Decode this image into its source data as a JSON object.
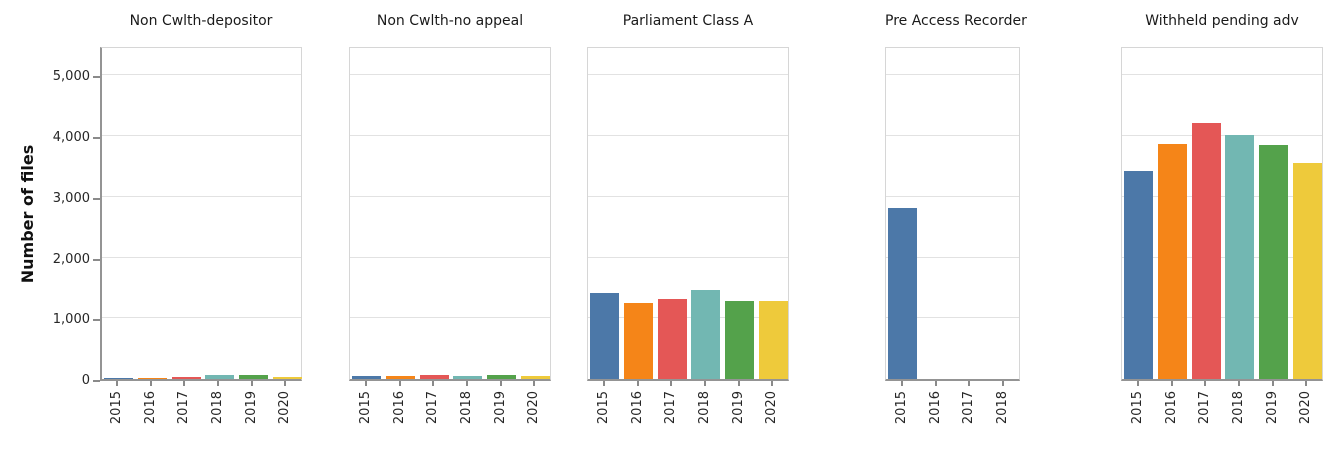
{
  "figure": {
    "background": "#ffffff",
    "text_color": "#262626",
    "grid_color": "#e2e2e2",
    "border_color": "#d6d6d6",
    "spine_color": "#949494"
  },
  "chart_data": {
    "type": "bar",
    "title": "",
    "xlabel": "",
    "ylabel": "Number of files",
    "ylim": [
      0,
      5500
    ],
    "grid": true,
    "legend": "none",
    "yticks": [
      {
        "value": 0,
        "label": "0"
      },
      {
        "value": 1000,
        "label": "1,000"
      },
      {
        "value": 2000,
        "label": "2,000"
      },
      {
        "value": 3000,
        "label": "3,000"
      },
      {
        "value": 4000,
        "label": "4,000"
      },
      {
        "value": 5000,
        "label": "5,000"
      }
    ],
    "palette": [
      "#4c78a8",
      "#f58518",
      "#e45756",
      "#72b7b2",
      "#54a24b",
      "#eeca3b"
    ],
    "facets": [
      {
        "title": "Non Cwlth-depositor",
        "categories": [
          "2015",
          "2016",
          "2017",
          "2018",
          "2019",
          "2020"
        ],
        "values": [
          15,
          20,
          25,
          65,
          65,
          40
        ]
      },
      {
        "title": "Non Cwlth-no appeal",
        "categories": [
          "2015",
          "2016",
          "2017",
          "2018",
          "2019",
          "2020"
        ],
        "values": [
          55,
          50,
          65,
          55,
          70,
          55
        ]
      },
      {
        "title": "Parliament Class A",
        "categories": [
          "2015",
          "2016",
          "2017",
          "2018",
          "2019",
          "2020"
        ],
        "values": [
          1420,
          1250,
          1310,
          1470,
          1290,
          1290
        ]
      },
      {
        "title": "Pre Access Recorder",
        "categories": [
          "2015",
          "2016",
          "2017",
          "2018"
        ],
        "values": [
          2810,
          0,
          0,
          0
        ]
      },
      {
        "title": "Withheld pending adv",
        "categories": [
          "2015",
          "2016",
          "2017",
          "2018",
          "2019",
          "2020"
        ],
        "values": [
          3430,
          3870,
          4220,
          4020,
          3850,
          3550
        ]
      }
    ]
  }
}
